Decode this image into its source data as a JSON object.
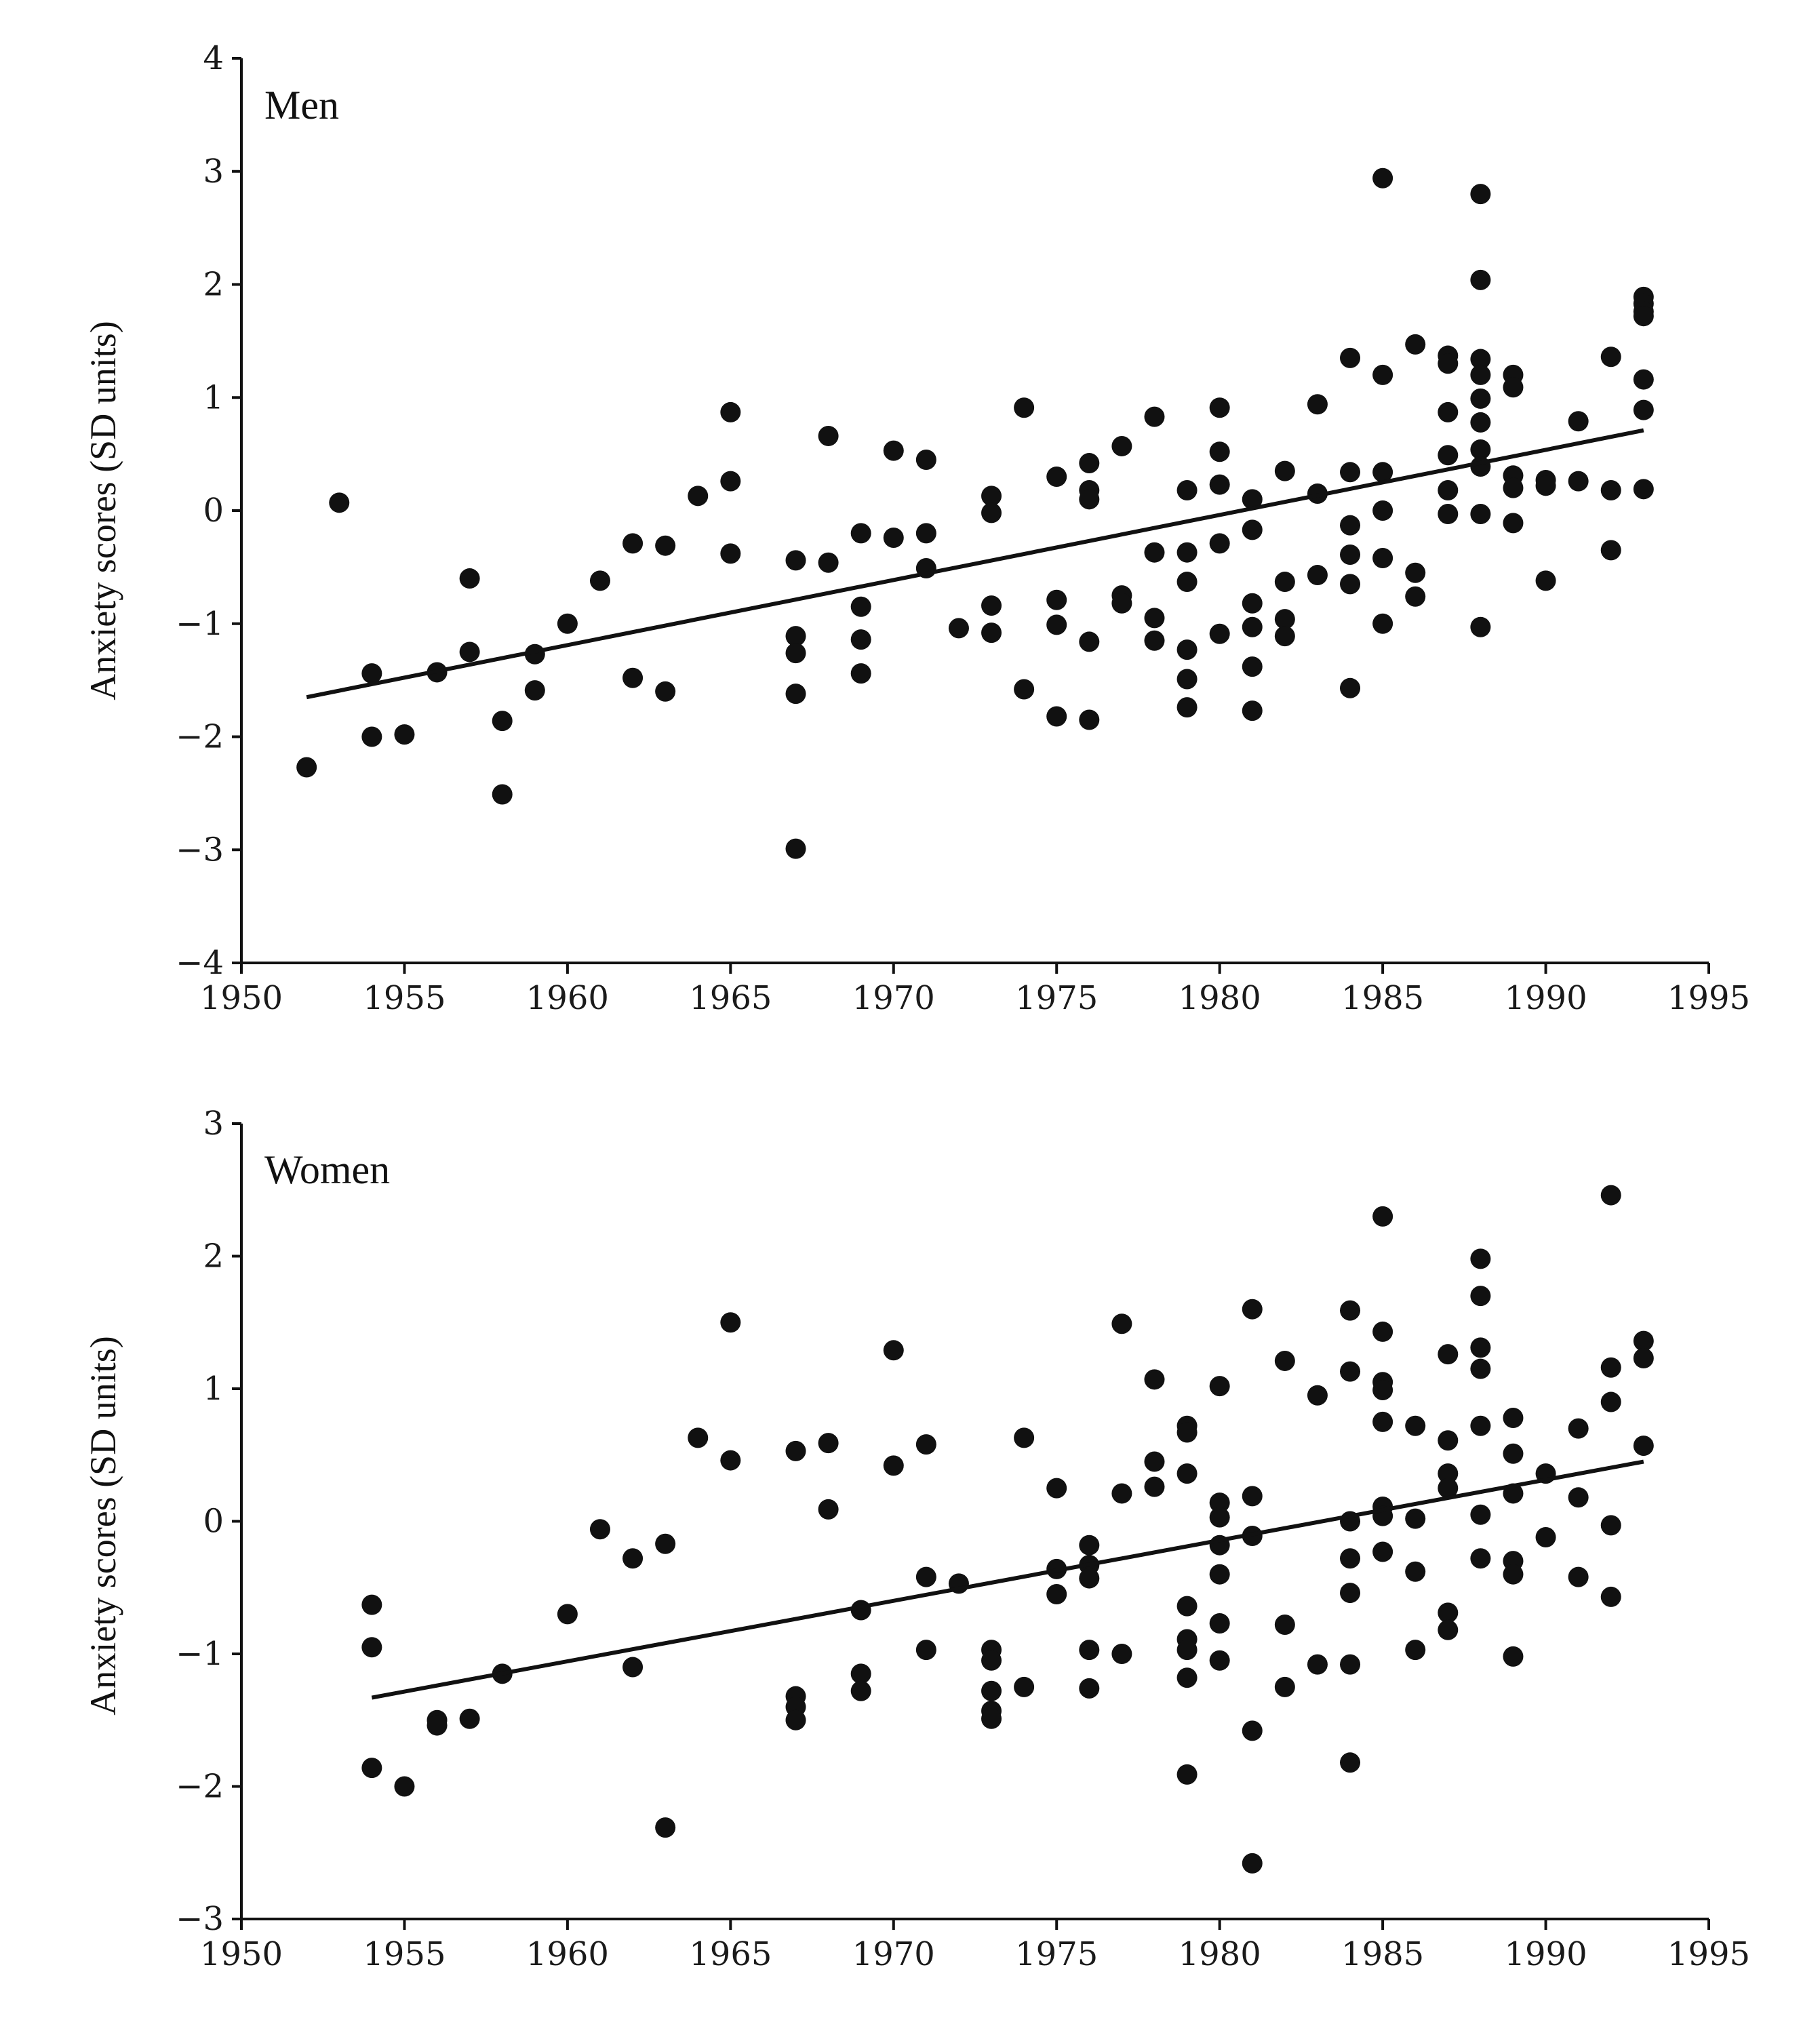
{
  "chart_data": [
    {
      "type": "scatter",
      "panel_label": "Men",
      "ylabel": "Anxiety scores (SD units)",
      "xlabel": "",
      "xlim": [
        1950,
        1995
      ],
      "ylim": [
        -4,
        4
      ],
      "xticks": [
        1950,
        1955,
        1960,
        1965,
        1970,
        1975,
        1980,
        1985,
        1990,
        1995
      ],
      "yticks": [
        4,
        3,
        2,
        1,
        0,
        -1,
        -2,
        -3,
        -4
      ],
      "yticklabels": [
        "4",
        "3",
        "2",
        "1",
        "0",
        "−1",
        "−2",
        "−3",
        "−4"
      ],
      "trend": {
        "x1": 1952,
        "y1": -1.65,
        "x2": 1993,
        "y2": 0.71
      },
      "points": [
        [
          1952,
          -2.27
        ],
        [
          1953,
          0.07
        ],
        [
          1954,
          -1.44
        ],
        [
          1954,
          -2.0
        ],
        [
          1955,
          -1.98
        ],
        [
          1956,
          -1.43
        ],
        [
          1957,
          -0.6
        ],
        [
          1957,
          -1.25
        ],
        [
          1958,
          -1.86
        ],
        [
          1958,
          -2.51
        ],
        [
          1959,
          -1.27
        ],
        [
          1959,
          -1.59
        ],
        [
          1960,
          -1.0
        ],
        [
          1961,
          -0.62
        ],
        [
          1962,
          -0.29
        ],
        [
          1962,
          -1.48
        ],
        [
          1963,
          -0.31
        ],
        [
          1963,
          -1.6
        ],
        [
          1964,
          0.13
        ],
        [
          1965,
          0.87
        ],
        [
          1965,
          0.26
        ],
        [
          1965,
          -0.38
        ],
        [
          1967,
          -0.44
        ],
        [
          1967,
          -1.11
        ],
        [
          1967,
          -1.26
        ],
        [
          1967,
          -1.62
        ],
        [
          1967,
          -2.99
        ],
        [
          1968,
          0.66
        ],
        [
          1968,
          -0.46
        ],
        [
          1969,
          -0.2
        ],
        [
          1969,
          -0.85
        ],
        [
          1969,
          -1.14
        ],
        [
          1969,
          -1.44
        ],
        [
          1970,
          0.53
        ],
        [
          1970,
          -0.24
        ],
        [
          1971,
          0.45
        ],
        [
          1971,
          -0.2
        ],
        [
          1971,
          -0.51
        ],
        [
          1972,
          -1.04
        ],
        [
          1973,
          0.13
        ],
        [
          1973,
          -0.02
        ],
        [
          1973,
          -0.84
        ],
        [
          1973,
          -1.08
        ],
        [
          1974,
          0.91
        ],
        [
          1974,
          -1.58
        ],
        [
          1975,
          0.3
        ],
        [
          1975,
          -0.79
        ],
        [
          1975,
          -1.01
        ],
        [
          1975,
          -1.82
        ],
        [
          1976,
          0.42
        ],
        [
          1976,
          0.18
        ],
        [
          1976,
          0.1
        ],
        [
          1976,
          -1.16
        ],
        [
          1976,
          -1.85
        ],
        [
          1977,
          0.57
        ],
        [
          1977,
          -0.75
        ],
        [
          1977,
          -0.82
        ],
        [
          1978,
          0.83
        ],
        [
          1978,
          -0.37
        ],
        [
          1978,
          -0.95
        ],
        [
          1978,
          -1.15
        ],
        [
          1979,
          0.18
        ],
        [
          1979,
          -0.37
        ],
        [
          1979,
          -0.63
        ],
        [
          1979,
          -1.23
        ],
        [
          1979,
          -1.49
        ],
        [
          1979,
          -1.74
        ],
        [
          1980,
          0.91
        ],
        [
          1980,
          0.52
        ],
        [
          1980,
          0.23
        ],
        [
          1980,
          -0.29
        ],
        [
          1980,
          -1.09
        ],
        [
          1981,
          0.1
        ],
        [
          1981,
          -0.17
        ],
        [
          1981,
          -0.82
        ],
        [
          1981,
          -1.03
        ],
        [
          1981,
          -1.38
        ],
        [
          1981,
          -1.77
        ],
        [
          1982,
          0.35
        ],
        [
          1982,
          -0.63
        ],
        [
          1982,
          -0.96
        ],
        [
          1982,
          -1.11
        ],
        [
          1983,
          0.94
        ],
        [
          1983,
          0.15
        ],
        [
          1983,
          -0.57
        ],
        [
          1984,
          1.35
        ],
        [
          1984,
          0.34
        ],
        [
          1984,
          -0.13
        ],
        [
          1984,
          -0.39
        ],
        [
          1984,
          -0.65
        ],
        [
          1984,
          -1.57
        ],
        [
          1985,
          2.94
        ],
        [
          1985,
          1.2
        ],
        [
          1985,
          0.34
        ],
        [
          1985,
          0.0
        ],
        [
          1985,
          -0.42
        ],
        [
          1985,
          -1.0
        ],
        [
          1986,
          1.47
        ],
        [
          1986,
          -0.55
        ],
        [
          1986,
          -0.76
        ],
        [
          1987,
          1.37
        ],
        [
          1987,
          1.3
        ],
        [
          1987,
          0.87
        ],
        [
          1987,
          0.49
        ],
        [
          1987,
          0.18
        ],
        [
          1987,
          -0.03
        ],
        [
          1988,
          2.8
        ],
        [
          1988,
          2.04
        ],
        [
          1988,
          1.34
        ],
        [
          1988,
          1.2
        ],
        [
          1988,
          0.99
        ],
        [
          1988,
          0.78
        ],
        [
          1988,
          0.54
        ],
        [
          1988,
          0.39
        ],
        [
          1988,
          -0.03
        ],
        [
          1988,
          -1.03
        ],
        [
          1989,
          1.2
        ],
        [
          1989,
          1.09
        ],
        [
          1989,
          0.31
        ],
        [
          1989,
          0.2
        ],
        [
          1989,
          -0.11
        ],
        [
          1990,
          0.27
        ],
        [
          1990,
          0.22
        ],
        [
          1990,
          -0.62
        ],
        [
          1991,
          0.79
        ],
        [
          1991,
          0.26
        ],
        [
          1992,
          1.36
        ],
        [
          1992,
          0.18
        ],
        [
          1992,
          -0.35
        ],
        [
          1993,
          1.89
        ],
        [
          1993,
          1.83
        ],
        [
          1993,
          1.76
        ],
        [
          1993,
          1.72
        ],
        [
          1993,
          1.16
        ],
        [
          1993,
          0.89
        ],
        [
          1993,
          0.19
        ]
      ]
    },
    {
      "type": "scatter",
      "panel_label": "Women",
      "ylabel": "Anxiety scores (SD units)",
      "xlabel": "",
      "xlim": [
        1950,
        1995
      ],
      "ylim": [
        -3,
        3
      ],
      "xticks": [
        1950,
        1955,
        1960,
        1965,
        1970,
        1975,
        1980,
        1985,
        1990,
        1995
      ],
      "yticks": [
        3,
        2,
        1,
        0,
        -1,
        -2,
        -3
      ],
      "yticklabels": [
        "3",
        "2",
        "1",
        "0",
        "−1",
        "−2",
        "−3"
      ],
      "trend": {
        "x1": 1954,
        "y1": -1.33,
        "x2": 1993,
        "y2": 0.45
      },
      "points": [
        [
          1954,
          -0.63
        ],
        [
          1954,
          -0.95
        ],
        [
          1954,
          -1.86
        ],
        [
          1955,
          -2.0
        ],
        [
          1956,
          -1.5
        ],
        [
          1956,
          -1.54
        ],
        [
          1957,
          -1.49
        ],
        [
          1958,
          -1.15
        ],
        [
          1960,
          -0.7
        ],
        [
          1961,
          -0.06
        ],
        [
          1962,
          -0.28
        ],
        [
          1962,
          -1.1
        ],
        [
          1963,
          -0.17
        ],
        [
          1963,
          -2.31
        ],
        [
          1964,
          0.63
        ],
        [
          1965,
          1.5
        ],
        [
          1965,
          0.46
        ],
        [
          1967,
          0.53
        ],
        [
          1967,
          -1.32
        ],
        [
          1967,
          -1.4
        ],
        [
          1967,
          -1.5
        ],
        [
          1968,
          0.59
        ],
        [
          1968,
          0.09
        ],
        [
          1969,
          -0.67
        ],
        [
          1969,
          -1.15
        ],
        [
          1969,
          -1.28
        ],
        [
          1970,
          1.29
        ],
        [
          1970,
          0.42
        ],
        [
          1971,
          0.58
        ],
        [
          1971,
          -0.42
        ],
        [
          1971,
          -0.97
        ],
        [
          1972,
          -0.47
        ],
        [
          1973,
          -0.97
        ],
        [
          1973,
          -1.05
        ],
        [
          1973,
          -1.28
        ],
        [
          1973,
          -1.43
        ],
        [
          1973,
          -1.49
        ],
        [
          1974,
          0.63
        ],
        [
          1974,
          -1.25
        ],
        [
          1975,
          0.25
        ],
        [
          1975,
          -0.36
        ],
        [
          1975,
          -0.55
        ],
        [
          1976,
          -0.18
        ],
        [
          1976,
          -0.33
        ],
        [
          1976,
          -0.43
        ],
        [
          1976,
          -0.97
        ],
        [
          1976,
          -1.26
        ],
        [
          1977,
          1.49
        ],
        [
          1977,
          0.21
        ],
        [
          1977,
          -1.0
        ],
        [
          1978,
          1.07
        ],
        [
          1978,
          0.45
        ],
        [
          1978,
          0.26
        ],
        [
          1979,
          0.72
        ],
        [
          1979,
          0.67
        ],
        [
          1979,
          0.36
        ],
        [
          1979,
          -0.64
        ],
        [
          1979,
          -0.89
        ],
        [
          1979,
          -0.97
        ],
        [
          1979,
          -1.18
        ],
        [
          1979,
          -1.91
        ],
        [
          1980,
          1.02
        ],
        [
          1980,
          0.14
        ],
        [
          1980,
          0.03
        ],
        [
          1980,
          -0.18
        ],
        [
          1980,
          -0.4
        ],
        [
          1980,
          -0.77
        ],
        [
          1980,
          -1.05
        ],
        [
          1981,
          1.6
        ],
        [
          1981,
          0.19
        ],
        [
          1981,
          -0.11
        ],
        [
          1981,
          -1.58
        ],
        [
          1981,
          -2.58
        ],
        [
          1982,
          1.21
        ],
        [
          1982,
          -0.78
        ],
        [
          1982,
          -1.25
        ],
        [
          1983,
          0.95
        ],
        [
          1983,
          -1.08
        ],
        [
          1984,
          1.59
        ],
        [
          1984,
          1.13
        ],
        [
          1984,
          0.0
        ],
        [
          1984,
          -0.28
        ],
        [
          1984,
          -0.54
        ],
        [
          1984,
          -1.08
        ],
        [
          1984,
          -1.82
        ],
        [
          1985,
          2.3
        ],
        [
          1985,
          1.43
        ],
        [
          1985,
          1.05
        ],
        [
          1985,
          0.99
        ],
        [
          1985,
          0.75
        ],
        [
          1985,
          0.11
        ],
        [
          1985,
          0.04
        ],
        [
          1985,
          -0.23
        ],
        [
          1986,
          0.72
        ],
        [
          1986,
          0.02
        ],
        [
          1986,
          -0.38
        ],
        [
          1986,
          -0.97
        ],
        [
          1987,
          1.26
        ],
        [
          1987,
          0.61
        ],
        [
          1987,
          0.36
        ],
        [
          1987,
          0.25
        ],
        [
          1987,
          -0.69
        ],
        [
          1987,
          -0.82
        ],
        [
          1988,
          1.98
        ],
        [
          1988,
          1.7
        ],
        [
          1988,
          1.31
        ],
        [
          1988,
          1.15
        ],
        [
          1988,
          0.72
        ],
        [
          1988,
          0.05
        ],
        [
          1988,
          -0.28
        ],
        [
          1989,
          0.78
        ],
        [
          1989,
          0.51
        ],
        [
          1989,
          0.21
        ],
        [
          1989,
          -0.3
        ],
        [
          1989,
          -0.4
        ],
        [
          1989,
          -1.02
        ],
        [
          1990,
          0.36
        ],
        [
          1990,
          -0.12
        ],
        [
          1991,
          0.7
        ],
        [
          1991,
          0.18
        ],
        [
          1991,
          -0.42
        ],
        [
          1992,
          2.46
        ],
        [
          1992,
          1.16
        ],
        [
          1992,
          0.9
        ],
        [
          1992,
          -0.03
        ],
        [
          1992,
          -0.57
        ],
        [
          1993,
          1.36
        ],
        [
          1993,
          1.23
        ],
        [
          1993,
          0.57
        ]
      ]
    }
  ]
}
